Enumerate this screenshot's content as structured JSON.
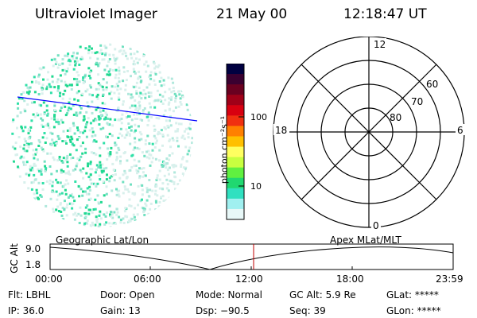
{
  "header": {
    "title": "Ultraviolet Imager",
    "date": "21 May 00",
    "time": "12:18:47 UT"
  },
  "colorbar": {
    "unit_label": "photon cm⁻²s⁻¹",
    "ticks": [
      "100",
      "10"
    ],
    "colors": [
      "#000040",
      "#3a0030",
      "#6a0020",
      "#a00018",
      "#d80010",
      "#f03010",
      "#ff8000",
      "#ffc000",
      "#ffff60",
      "#c8ff40",
      "#60f040",
      "#20d870",
      "#30e0c0",
      "#a0f0f0",
      "#e8f8f8"
    ]
  },
  "polar_plot": {
    "mlt_labels": [
      "12",
      "18",
      "6",
      "0"
    ],
    "lat_labels": [
      "60",
      "70",
      "80"
    ]
  },
  "timeline": {
    "left_caption": "Geographic Lat/Lon",
    "right_caption": "Apex MLat/MLT",
    "y_axis_label": "GC Alt",
    "y_ticks": [
      "9.0",
      "1.8"
    ],
    "x_ticks": [
      "00:00",
      "06:00",
      "12:00",
      "18:00",
      "23:59"
    ],
    "current_marker_color": "#c00000"
  },
  "info_panel": {
    "row1": [
      "Flt: LBHL",
      "Door: Open",
      "Mode: Normal",
      "GC Alt: 5.9 Re",
      "GLat: *****"
    ],
    "row2": [
      "IP: 36.0",
      "Gain: 13",
      "Dsp:  −90.5",
      "Seq: 39",
      "GLon: *****"
    ]
  }
}
